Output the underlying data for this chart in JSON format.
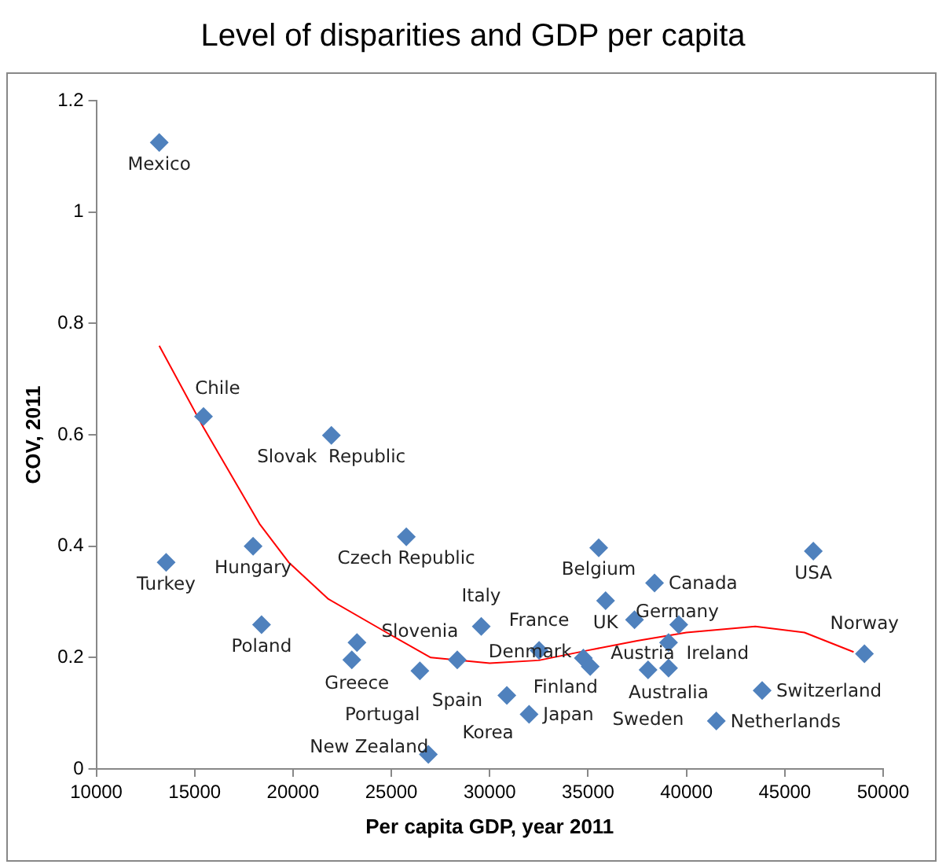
{
  "chart_data": {
    "type": "scatter",
    "title": "Level of disparities and GDP per capita",
    "xlabel": "Per capita GDP, year 2011",
    "ylabel": "COV, 2011",
    "xlim": [
      10000,
      50000
    ],
    "xticks": [
      10000,
      15000,
      20000,
      25000,
      30000,
      35000,
      40000,
      45000,
      50000
    ],
    "ylim": [
      0,
      1.2
    ],
    "yticks": [
      0,
      0.2,
      0.4,
      0.6,
      0.8,
      1,
      1.2
    ],
    "grid": false,
    "legend": false,
    "series": [
      {
        "type": "scatter",
        "color": "#4f81bd",
        "marker": "diamond",
        "x": [
          13200,
          15450,
          21950,
          13550,
          17970,
          25760,
          35540,
          46450,
          38380,
          35890,
          37360,
          39610,
          39090,
          38050,
          39090,
          41520,
          43850,
          49050,
          29570,
          23250,
          22990,
          26450,
          28350,
          30870,
          32000,
          26880,
          32510,
          34760,
          35110,
          18400
        ],
        "values": [
          1.125,
          0.633,
          0.599,
          0.371,
          0.4,
          0.417,
          0.397,
          0.391,
          0.334,
          0.302,
          0.268,
          0.259,
          0.227,
          0.178,
          0.181,
          0.086,
          0.141,
          0.207,
          0.256,
          0.227,
          0.196,
          0.176,
          0.196,
          0.132,
          0.098,
          0.026,
          0.213,
          0.199,
          0.184,
          0.259
        ]
      },
      {
        "type": "line",
        "color": "#ff0000",
        "marker": "none",
        "x": [
          13200,
          15450,
          18300,
          19780,
          21800,
          25000,
          27000,
          30000,
          32500,
          35000,
          37500,
          40000,
          43500,
          46000,
          48500
        ],
        "values": [
          0.76,
          0.613,
          0.44,
          0.371,
          0.305,
          0.24,
          0.2,
          0.19,
          0.195,
          0.213,
          0.23,
          0.245,
          0.256,
          0.245,
          0.21
        ]
      }
    ],
    "annotations": [
      {
        "text": "Mexico",
        "x": 13200,
        "y": 1.125
      },
      {
        "text": "Chile",
        "x": 15450,
        "y": 0.633
      },
      {
        "text": "Slovak  Republic",
        "x": 21950,
        "y": 0.599
      },
      {
        "text": "Turkey",
        "x": 13550,
        "y": 0.371
      },
      {
        "text": "Hungary",
        "x": 17970,
        "y": 0.4
      },
      {
        "text": "Czech Republic",
        "x": 25760,
        "y": 0.417
      },
      {
        "text": "Belgium",
        "x": 35540,
        "y": 0.397
      },
      {
        "text": "USA",
        "x": 46450,
        "y": 0.391
      },
      {
        "text": "Canada",
        "x": 38380,
        "y": 0.334
      },
      {
        "text": "UK",
        "x": 35890,
        "y": 0.302
      },
      {
        "text": "Germany",
        "x": 37360,
        "y": 0.268
      },
      {
        "text": "Ireland",
        "x": 39610,
        "y": 0.259
      },
      {
        "text": "Australia",
        "x": 39090,
        "y": 0.227
      },
      {
        "text": "Sweden",
        "x": 38050,
        "y": 0.178
      },
      {
        "text": "Austria",
        "x": 39090,
        "y": 0.181
      },
      {
        "text": "Netherlands",
        "x": 41520,
        "y": 0.086
      },
      {
        "text": "Switzerland",
        "x": 43850,
        "y": 0.141
      },
      {
        "text": "Norway",
        "x": 49050,
        "y": 0.207
      },
      {
        "text": "Italy",
        "x": 29570,
        "y": 0.256
      },
      {
        "text": "Greece",
        "x": 23250,
        "y": 0.227
      },
      {
        "text": "Portugal",
        "x": 22990,
        "y": 0.196
      },
      {
        "text": "Slovenia",
        "x": 26450,
        "y": 0.176
      },
      {
        "text": "Spain",
        "x": 28350,
        "y": 0.196
      },
      {
        "text": "Korea",
        "x": 30870,
        "y": 0.132
      },
      {
        "text": "Japan",
        "x": 32000,
        "y": 0.098
      },
      {
        "text": "New Zealand",
        "x": 26880,
        "y": 0.026
      },
      {
        "text": "France",
        "x": 32510,
        "y": 0.213
      },
      {
        "text": "Finland",
        "x": 34760,
        "y": 0.199
      },
      {
        "text": "Denmark",
        "x": 35110,
        "y": 0.184
      },
      {
        "text": "Poland",
        "x": 18400,
        "y": 0.259
      }
    ]
  }
}
